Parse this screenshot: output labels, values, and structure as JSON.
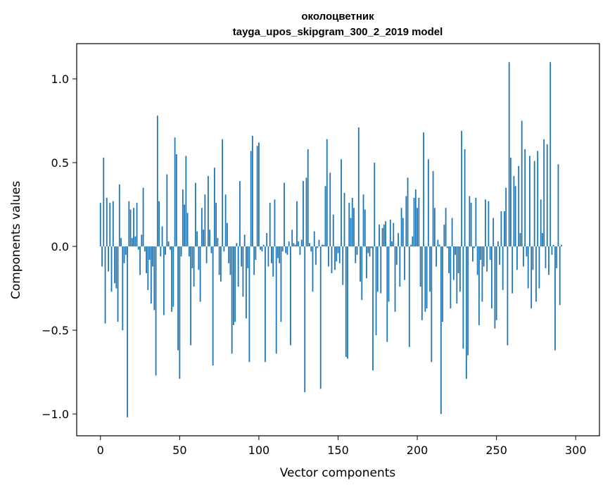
{
  "chart_data": {
    "type": "bar",
    "title_line1": "околоцветник",
    "title_line2": "tayga_upos_skipgram_300_2_2019 model",
    "xlabel": "Vector components",
    "ylabel": "Components values",
    "xlim": [
      -15,
      315
    ],
    "ylim": [
      -1.13,
      1.21
    ],
    "xticks": [
      0,
      50,
      100,
      150,
      200,
      250,
      300
    ],
    "yticks": [
      1.0,
      0.5,
      0.0,
      -0.5,
      -1.0
    ],
    "ytick_labels": [
      "1.0",
      "0.5",
      "0.0",
      "−0.5",
      "−1.0"
    ],
    "bar_color": "#1f77b4",
    "grid": false,
    "values": [
      0.26,
      -0.12,
      0.53,
      -0.46,
      0.29,
      -0.15,
      0.26,
      -0.27,
      0.27,
      -0.22,
      -0.25,
      -0.45,
      0.37,
      0.05,
      -0.5,
      -0.1,
      -0.05,
      -1.02,
      0.27,
      0.22,
      0.05,
      0.23,
      0.06,
      0.26,
      -0.02,
      -0.17,
      0.07,
      0.35,
      -0.03,
      -0.16,
      -0.26,
      -0.08,
      -0.34,
      -0.12,
      -0.38,
      -0.77,
      0.78,
      0.27,
      -0.06,
      0.12,
      -0.41,
      -0.05,
      0.43,
      0.03,
      -0.02,
      -0.39,
      -0.36,
      0.65,
      0.55,
      -0.62,
      -0.79,
      -0.06,
      0.34,
      0.25,
      0.54,
      0.2,
      -0.06,
      -0.59,
      -0.13,
      -0.24,
      0.38,
      0.09,
      -0.14,
      -0.33,
      0.23,
      0.1,
      0.31,
      -0.1,
      0.42,
      0.1,
      -0.04,
      -0.71,
      0.47,
      0.26,
      0.05,
      -0.17,
      -0.21,
      0.64,
      -0.03,
      0.31,
      0.14,
      -0.1,
      -0.17,
      -0.64,
      -0.47,
      -0.45,
      0.02,
      -0.24,
      0.39,
      -0.12,
      -0.3,
      0.07,
      -0.43,
      -0.13,
      -0.69,
      0.57,
      0.66,
      -0.17,
      -0.08,
      0.6,
      0.62,
      -0.02,
      -0.03,
      0.01,
      -0.69,
      0.08,
      -0.12,
      0.26,
      -0.1,
      -0.18,
      0.28,
      -0.64,
      -0.07,
      -0.1,
      -0.45,
      -0.03,
      0.38,
      -0.04,
      -0.05,
      0.03,
      -0.59,
      0.1,
      0.02,
      0.01,
      0.27,
      0.03,
      -0.05,
      0.04,
      0.39,
      -0.87,
      0.41,
      0.58,
      0.02,
      -0.03,
      -0.27,
      0.09,
      -0.11,
      -0.01,
      0.04,
      -0.85,
      0.01,
      0.01,
      0.36,
      0.64,
      -0.12,
      0.44,
      -0.16,
      0.19,
      -0.14,
      -0.09,
      -0.04,
      -0.1,
      0.52,
      -0.23,
      0.32,
      -0.66,
      -0.67,
      0.26,
      0.17,
      0.29,
      0.23,
      -0.1,
      -0.05,
      0.71,
      -0.21,
      -0.32,
      0.31,
      0.22,
      -0.19,
      -0.04,
      -0.06,
      -0.01,
      -0.74,
      0.5,
      -0.53,
      -0.27,
      0.13,
      -0.28,
      0.11,
      0.13,
      0.15,
      -0.57,
      -0.33,
      0.16,
      0.03,
      0.14,
      -0.39,
      -0.11,
      0.08,
      -0.24,
      0.23,
      0.17,
      -0.2,
      0.3,
      0.41,
      -0.6,
      0.01,
      0.06,
      0.29,
      0.34,
      0.23,
      0.29,
      -0.24,
      -0.44,
      0.68,
      -0.39,
      -0.37,
      0.52,
      -0.27,
      -0.69,
      0.45,
      0.23,
      -0.12,
      0.04,
      0.01,
      -1.0,
      -0.45,
      0.13,
      0.23,
      -0.01,
      -0.16,
      -0.37,
      0.17,
      -0.2,
      -0.05,
      -0.34,
      -0.16,
      -0.27,
      0.69,
      -0.61,
      0.58,
      -0.79,
      -0.65,
      0.3,
      0.26,
      -0.09,
      -0.01,
      0.29,
      -0.17,
      -0.47,
      -0.08,
      -0.33,
      -0.12,
      0.28,
      -0.15,
      0.27,
      -0.08,
      -0.37,
      0.17,
      -0.49,
      -0.44,
      0.03,
      -0.11,
      0.21,
      -0.26,
      0.21,
      0.35,
      -0.59,
      1.1,
      0.53,
      -0.28,
      0.42,
      0.36,
      -0.14,
      0.48,
      0.08,
      0.75,
      -0.12,
      0.58,
      -0.06,
      -0.25,
      0.54,
      -0.37,
      -0.14,
      0.51,
      -0.33,
      0.57,
      -0.25,
      0.28,
      0.08,
      0.64,
      -0.13,
      0.61,
      -0.17,
      1.1,
      -0.05,
      0.01,
      -0.62,
      -0.13,
      0.49,
      -0.35,
      0.01
    ]
  }
}
